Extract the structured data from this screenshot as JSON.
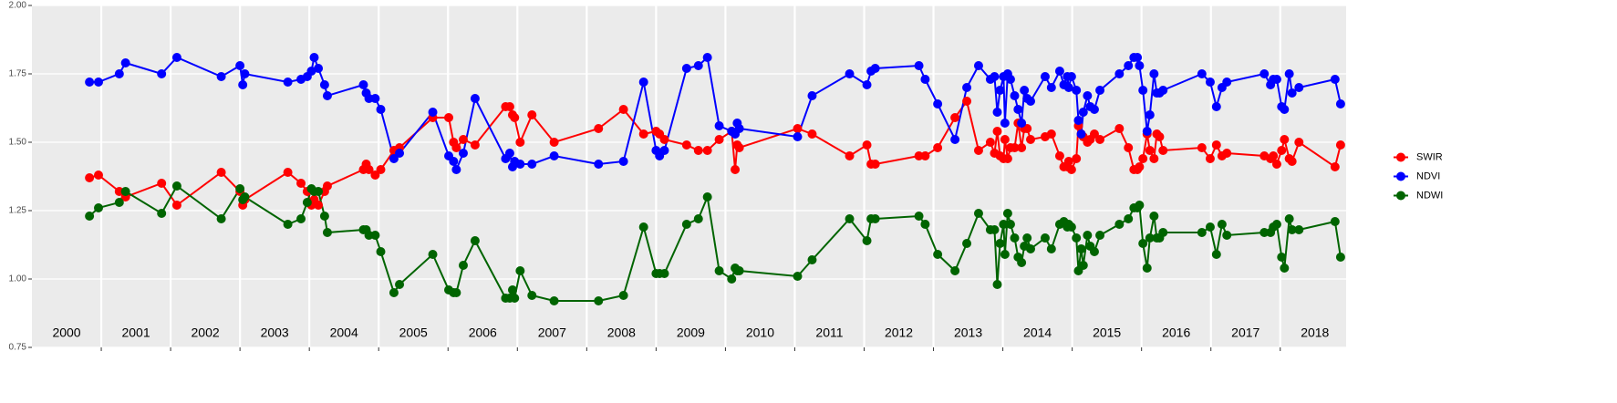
{
  "chart_data": {
    "type": "line",
    "xlim": [
      2000,
      2018.95
    ],
    "xticks": [
      2001,
      2002,
      2003,
      2004,
      2005,
      2006,
      2007,
      2008,
      2009,
      2010,
      2011,
      2012,
      2013,
      2014,
      2015,
      2016,
      2017,
      2018
    ],
    "ylim": [
      0.75,
      2.0
    ],
    "yticks": [
      0.75,
      {
        "value": 1,
        "label": "1.00"
      },
      1.25,
      {
        "value": 1.5,
        "label": "1.50"
      },
      1.75,
      {
        "value": 2,
        "label": "2.00"
      }
    ],
    "grid": true,
    "legend": "right",
    "x": [
      2000.83,
      2000.96,
      2001.26,
      2001.35,
      2001.87,
      2002.09,
      2002.73,
      2003,
      2003.04,
      2003.07,
      2003.69,
      2003.88,
      2003.97,
      2004.03,
      2004.07,
      2004.13,
      2004.22,
      2004.26,
      2004.78,
      2004.82,
      2004.86,
      2004.95,
      2005.03,
      2005.22,
      2005.3,
      2005.78,
      2006.01,
      2006.08,
      2006.12,
      2006.22,
      2006.39,
      2006.83,
      2006.89,
      2006.93,
      2006.96,
      2007.04,
      2007.21,
      2007.53,
      2008.17,
      2008.53,
      2008.82,
      2009,
      2009.05,
      2009.12,
      2009.44,
      2009.61,
      2009.74,
      2009.91,
      2010.09,
      2010.14,
      2010.17,
      2010.2,
      2011.04,
      2011.25,
      2011.79,
      2012.04,
      2012.1,
      2012.16,
      2012.79,
      2012.88,
      2013.06,
      2013.31,
      2013.48,
      2013.65,
      2013.82,
      2013.88,
      2013.92,
      2013.96,
      2014.01,
      2014.03,
      2014.07,
      2014.11,
      2014.17,
      2014.22,
      2014.27,
      2014.31,
      2014.35,
      2014.4,
      2014.61,
      2014.7,
      2014.82,
      2014.88,
      2014.93,
      2014.95,
      2014.99,
      2015.06,
      2015.09,
      2015.13,
      2015.16,
      2015.22,
      2015.26,
      2015.32,
      2015.4,
      2015.68,
      2015.81,
      2015.89,
      2015.94,
      2015.97,
      2016.02,
      2016.08,
      2016.12,
      2016.18,
      2016.22,
      2016.26,
      2016.31,
      2016.87,
      2016.99,
      2017.08,
      2017.16,
      2017.23,
      2017.77,
      2017.86,
      2017.9,
      2017.95,
      2018.02,
      2018.06,
      2018.13,
      2018.17,
      2018.27,
      2018.79,
      2018.87
    ],
    "series": [
      {
        "name": "SWIR",
        "color": "#ff0000",
        "values": [
          1.37,
          1.38,
          1.32,
          1.3,
          1.35,
          1.27,
          1.39,
          1.32,
          1.27,
          1.29,
          1.39,
          1.35,
          1.32,
          1.27,
          1.29,
          1.27,
          1.32,
          1.34,
          1.4,
          1.42,
          1.4,
          1.38,
          1.4,
          1.47,
          1.48,
          1.59,
          1.59,
          1.5,
          1.48,
          1.51,
          1.49,
          1.63,
          1.63,
          1.6,
          1.59,
          1.5,
          1.6,
          1.5,
          1.55,
          1.62,
          1.53,
          1.54,
          1.53,
          1.51,
          1.49,
          1.47,
          1.47,
          1.51,
          1.54,
          1.4,
          1.49,
          1.48,
          1.55,
          1.53,
          1.45,
          1.49,
          1.42,
          1.42,
          1.45,
          1.45,
          1.48,
          1.59,
          1.65,
          1.47,
          1.5,
          1.46,
          1.54,
          1.45,
          1.44,
          1.51,
          1.44,
          1.48,
          1.48,
          1.57,
          1.48,
          1.55,
          1.55,
          1.51,
          1.52,
          1.53,
          1.45,
          1.41,
          1.41,
          1.43,
          1.4,
          1.44,
          1.56,
          1.53,
          1.52,
          1.5,
          1.51,
          1.53,
          1.51,
          1.55,
          1.48,
          1.4,
          1.4,
          1.41,
          1.44,
          1.53,
          1.47,
          1.44,
          1.53,
          1.52,
          1.47,
          1.48,
          1.44,
          1.49,
          1.45,
          1.46,
          1.45,
          1.44,
          1.45,
          1.42,
          1.47,
          1.51,
          1.44,
          1.43,
          1.5,
          1.41,
          1.49
        ]
      },
      {
        "name": "NDVI",
        "color": "#0000ff",
        "values": [
          1.72,
          1.72,
          1.75,
          1.79,
          1.75,
          1.81,
          1.74,
          1.78,
          1.71,
          1.75,
          1.72,
          1.73,
          1.74,
          1.76,
          1.81,
          1.77,
          1.71,
          1.67,
          1.71,
          1.68,
          1.66,
          1.66,
          1.62,
          1.44,
          1.46,
          1.61,
          1.45,
          1.43,
          1.4,
          1.46,
          1.66,
          1.44,
          1.46,
          1.41,
          1.43,
          1.42,
          1.42,
          1.45,
          1.42,
          1.43,
          1.72,
          1.47,
          1.45,
          1.47,
          1.77,
          1.78,
          1.81,
          1.56,
          1.54,
          1.53,
          1.57,
          1.55,
          1.52,
          1.67,
          1.75,
          1.71,
          1.76,
          1.77,
          1.78,
          1.73,
          1.64,
          1.51,
          1.7,
          1.78,
          1.73,
          1.74,
          1.61,
          1.69,
          1.74,
          1.57,
          1.75,
          1.73,
          1.67,
          1.62,
          1.57,
          1.69,
          1.66,
          1.65,
          1.74,
          1.7,
          1.76,
          1.71,
          1.74,
          1.7,
          1.74,
          1.69,
          1.58,
          1.53,
          1.61,
          1.67,
          1.63,
          1.62,
          1.69,
          1.75,
          1.78,
          1.81,
          1.81,
          1.78,
          1.69,
          1.54,
          1.6,
          1.75,
          1.68,
          1.68,
          1.69,
          1.75,
          1.72,
          1.63,
          1.7,
          1.72,
          1.75,
          1.71,
          1.73,
          1.73,
          1.63,
          1.62,
          1.75,
          1.68,
          1.7,
          1.73,
          1.64
        ]
      },
      {
        "name": "NDWI",
        "color": "#006400",
        "values": [
          1.23,
          1.26,
          1.28,
          1.32,
          1.24,
          1.34,
          1.22,
          1.33,
          1.29,
          1.3,
          1.2,
          1.22,
          1.28,
          1.33,
          1.32,
          1.32,
          1.23,
          1.17,
          1.18,
          1.18,
          1.16,
          1.16,
          1.1,
          0.95,
          0.98,
          1.09,
          0.96,
          0.95,
          0.95,
          1.05,
          1.14,
          0.93,
          0.93,
          0.96,
          0.93,
          1.03,
          0.94,
          0.92,
          0.92,
          0.94,
          1.19,
          1.02,
          1.02,
          1.02,
          1.2,
          1.22,
          1.3,
          1.03,
          1.0,
          1.04,
          1.03,
          1.03,
          1.01,
          1.07,
          1.22,
          1.14,
          1.22,
          1.22,
          1.23,
          1.2,
          1.09,
          1.03,
          1.13,
          1.24,
          1.18,
          1.18,
          0.98,
          1.13,
          1.2,
          1.09,
          1.24,
          1.2,
          1.15,
          1.08,
          1.06,
          1.12,
          1.15,
          1.11,
          1.15,
          1.11,
          1.2,
          1.21,
          1.19,
          1.2,
          1.19,
          1.15,
          1.03,
          1.11,
          1.05,
          1.16,
          1.12,
          1.1,
          1.16,
          1.2,
          1.22,
          1.26,
          1.26,
          1.27,
          1.13,
          1.04,
          1.15,
          1.23,
          1.15,
          1.15,
          1.17,
          1.17,
          1.19,
          1.09,
          1.2,
          1.16,
          1.17,
          1.17,
          1.19,
          1.2,
          1.08,
          1.04,
          1.22,
          1.18,
          1.18,
          1.21,
          1.08
        ]
      }
    ],
    "annotations": [
      {
        "text": "2000",
        "x": 2000.5,
        "y": 0.8
      },
      {
        "text": "2001",
        "x": 2001.5,
        "y": 0.8
      },
      {
        "text": "2002",
        "x": 2002.5,
        "y": 0.8
      },
      {
        "text": "2003",
        "x": 2003.5,
        "y": 0.8
      },
      {
        "text": "2004",
        "x": 2004.5,
        "y": 0.8
      },
      {
        "text": "2005",
        "x": 2005.5,
        "y": 0.8
      },
      {
        "text": "2006",
        "x": 2006.5,
        "y": 0.8
      },
      {
        "text": "2007",
        "x": 2007.5,
        "y": 0.8
      },
      {
        "text": "2008",
        "x": 2008.5,
        "y": 0.8
      },
      {
        "text": "2009",
        "x": 2009.5,
        "y": 0.8
      },
      {
        "text": "2010",
        "x": 2010.5,
        "y": 0.8
      },
      {
        "text": "2011",
        "x": 2011.5,
        "y": 0.8
      },
      {
        "text": "2012",
        "x": 2012.5,
        "y": 0.8
      },
      {
        "text": "2013",
        "x": 2013.5,
        "y": 0.8
      },
      {
        "text": "2014",
        "x": 2014.5,
        "y": 0.8
      },
      {
        "text": "2015",
        "x": 2015.5,
        "y": 0.8
      },
      {
        "text": "2016",
        "x": 2016.5,
        "y": 0.8
      },
      {
        "text": "2017",
        "x": 2017.5,
        "y": 0.8
      },
      {
        "text": "2018",
        "x": 2018.5,
        "y": 0.8
      }
    ]
  }
}
